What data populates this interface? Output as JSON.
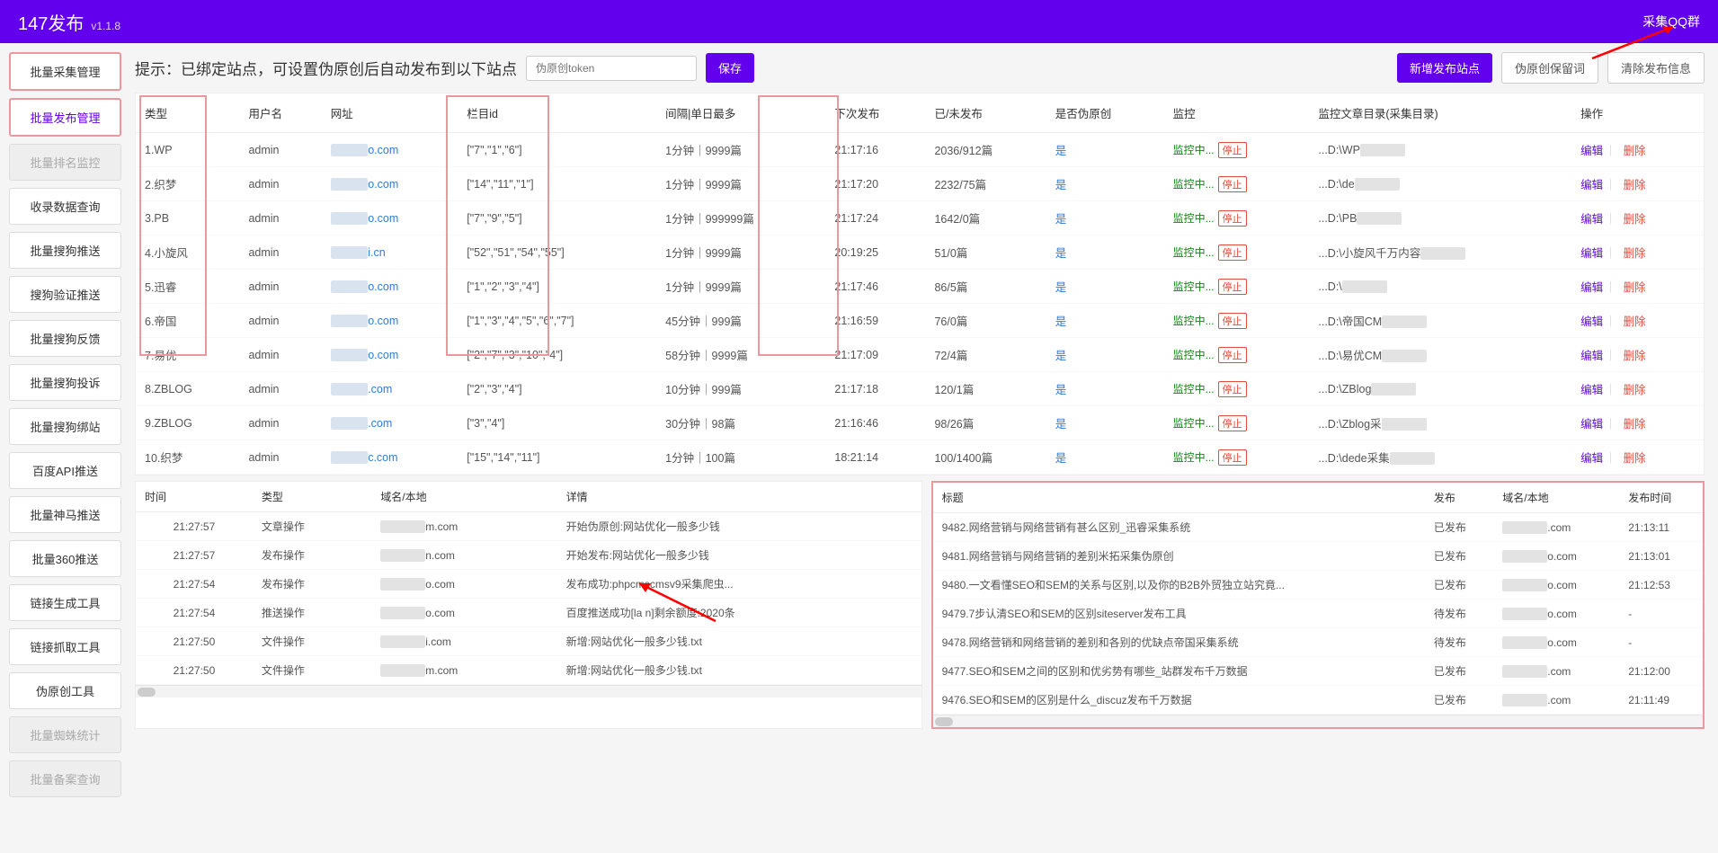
{
  "header": {
    "title": "147发布",
    "version": "v1.1.8",
    "right": "采集QQ群"
  },
  "sidebar": [
    {
      "label": "批量采集管理",
      "state": "boxed"
    },
    {
      "label": "批量发布管理",
      "state": "active"
    },
    {
      "label": "批量排名监控",
      "state": "disabled"
    },
    {
      "label": "收录数据查询",
      "state": ""
    },
    {
      "label": "批量搜狗推送",
      "state": ""
    },
    {
      "label": "搜狗验证推送",
      "state": ""
    },
    {
      "label": "批量搜狗反馈",
      "state": ""
    },
    {
      "label": "批量搜狗投诉",
      "state": ""
    },
    {
      "label": "批量搜狗绑站",
      "state": ""
    },
    {
      "label": "百度API推送",
      "state": ""
    },
    {
      "label": "批量神马推送",
      "state": ""
    },
    {
      "label": "批量360推送",
      "state": ""
    },
    {
      "label": "链接生成工具",
      "state": ""
    },
    {
      "label": "链接抓取工具",
      "state": ""
    },
    {
      "label": "伪原创工具",
      "state": ""
    },
    {
      "label": "批量蜘蛛统计",
      "state": "disabled"
    },
    {
      "label": "批量备案查询",
      "state": "disabled"
    }
  ],
  "topbar": {
    "tip": "提示：已绑定站点，可设置伪原创后自动发布到以下站点",
    "token_placeholder": "伪原创token",
    "save": "保存",
    "add": "新增发布站点",
    "reserve": "伪原创保留词",
    "clear": "清除发布信息"
  },
  "main_table": {
    "headers": [
      "类型",
      "用户名",
      "网址",
      "栏目id",
      "间隔|单日最多",
      "下次发布",
      "已/未发布",
      "是否伪原创",
      "监控",
      "监控文章目录(采集目录)",
      "操作"
    ],
    "rows": [
      {
        "type": "1.WP",
        "user": "admin",
        "url_suffix": "o.com",
        "col": "[\"7\",\"1\",\"6\"]",
        "interval": "1分钟｜9999篇",
        "next": "21:17:16",
        "done": "2036/912篇",
        "fake": "是",
        "dir": "...D:\\WP"
      },
      {
        "type": "2.织梦",
        "user": "admin",
        "url_suffix": "o.com",
        "col": "[\"14\",\"11\",\"1\"]",
        "interval": "1分钟｜9999篇",
        "next": "21:17:20",
        "done": "2232/75篇",
        "fake": "是",
        "dir": "...D:\\de"
      },
      {
        "type": "3.PB",
        "user": "admin",
        "url_suffix": "o.com",
        "col": "[\"7\",\"9\",\"5\"]",
        "interval": "1分钟｜999999篇",
        "next": "21:17:24",
        "done": "1642/0篇",
        "fake": "是",
        "dir": "...D:\\PB"
      },
      {
        "type": "4.小旋风",
        "user": "admin",
        "url_suffix": "i.cn",
        "col": "[\"52\",\"51\",\"54\",\"55\"]",
        "interval": "1分钟｜9999篇",
        "next": "20:19:25",
        "done": "51/0篇",
        "fake": "是",
        "dir": "...D:\\小旋风千万内容"
      },
      {
        "type": "5.迅睿",
        "user": "admin",
        "url_suffix": "o.com",
        "col": "[\"1\",\"2\",\"3\",\"4\"]",
        "interval": "1分钟｜9999篇",
        "next": "21:17:46",
        "done": "86/5篇",
        "fake": "是",
        "dir": "...D:\\"
      },
      {
        "type": "6.帝国",
        "user": "admin",
        "url_suffix": "o.com",
        "col": "[\"1\",\"3\",\"4\",\"5\",\"6\",\"7\"]",
        "interval": "45分钟｜999篇",
        "next": "21:16:59",
        "done": "76/0篇",
        "fake": "是",
        "dir": "...D:\\帝国CM"
      },
      {
        "type": "7.易优",
        "user": "admin",
        "url_suffix": "o.com",
        "col": "[\"2\",\"7\",\"3\",\"10\",\"4\"]",
        "interval": "58分钟｜9999篇",
        "next": "21:17:09",
        "done": "72/4篇",
        "fake": "是",
        "dir": "...D:\\易优CM"
      },
      {
        "type": "8.ZBLOG",
        "user": "admin",
        "url_suffix": ".com",
        "col": "[\"2\",\"3\",\"4\"]",
        "interval": "10分钟｜999篇",
        "next": "21:17:18",
        "done": "120/1篇",
        "fake": "是",
        "dir": "...D:\\ZBlog"
      },
      {
        "type": "9.ZBLOG",
        "user": "admin",
        "url_suffix": ".com",
        "col": "[\"3\",\"4\"]",
        "interval": "30分钟｜98篇",
        "next": "21:16:46",
        "done": "98/26篇",
        "fake": "是",
        "dir": "...D:\\Zblog采"
      },
      {
        "type": "10.织梦",
        "user": "admin",
        "url_suffix": "c.com",
        "col": "[\"15\",\"14\",\"11\"]",
        "interval": "1分钟｜100篇",
        "next": "18:21:14",
        "done": "100/1400篇",
        "fake": "是",
        "dir": "...D:\\dede采集"
      }
    ],
    "monitor_running": "监控中...",
    "monitor_stop": "停止",
    "op_edit": "编辑",
    "op_del": "删除"
  },
  "log_left": {
    "headers": [
      "时间",
      "类型",
      "域名/本地",
      "详情"
    ],
    "rows": [
      {
        "time": "21:27:57",
        "type": "文章操作",
        "domain": "m.com",
        "detail": "开始伪原创:网站优化一般多少钱"
      },
      {
        "time": "21:27:57",
        "type": "发布操作",
        "domain": "n.com",
        "detail": "开始发布:网站优化一般多少钱"
      },
      {
        "time": "21:27:54",
        "type": "发布操作",
        "domain": "o.com",
        "detail": "发布成功:phpcmscmsv9采集爬虫..."
      },
      {
        "time": "21:27:54",
        "type": "推送操作",
        "domain": "o.com",
        "detail": "百度推送成功[la          n]剩余额度:2020条"
      },
      {
        "time": "21:27:50",
        "type": "文件操作",
        "domain": "i.com",
        "detail": "新增:网站优化一般多少钱.txt"
      },
      {
        "time": "21:27:50",
        "type": "文件操作",
        "domain": "m.com",
        "detail": "新增:网站优化一般多少钱.txt"
      }
    ]
  },
  "log_right": {
    "headers": [
      "标题",
      "发布",
      "域名/本地",
      "发布时间"
    ],
    "rows": [
      {
        "title": "9482.网络营销与网络营销有甚么区别_迅睿采集系统",
        "pub": "已发布",
        "domain": ".com",
        "time": "21:13:11"
      },
      {
        "title": "9481.网络营销与网络营销的差别米拓采集伪原创",
        "pub": "已发布",
        "domain": "o.com",
        "time": "21:13:01"
      },
      {
        "title": "9480.一文看懂SEO和SEM的关系与区别,以及你的B2B外贸独立站究竟...",
        "pub": "已发布",
        "domain": "o.com",
        "time": "21:12:53"
      },
      {
        "title": "9479.7步认清SEO和SEM的区别siteserver发布工具",
        "pub": "待发布",
        "domain": "o.com",
        "time": "-"
      },
      {
        "title": "9478.网络营销和网络营销的差别和各别的优缺点帝国采集系统",
        "pub": "待发布",
        "domain": "o.com",
        "time": "-"
      },
      {
        "title": "9477.SEO和SEM之间的区别和优劣势有哪些_站群发布千万数据",
        "pub": "已发布",
        "domain": ".com",
        "time": "21:12:00"
      },
      {
        "title": "9476.SEO和SEM的区别是什么_discuz发布千万数据",
        "pub": "已发布",
        "domain": ".com",
        "time": "21:11:49"
      }
    ]
  }
}
